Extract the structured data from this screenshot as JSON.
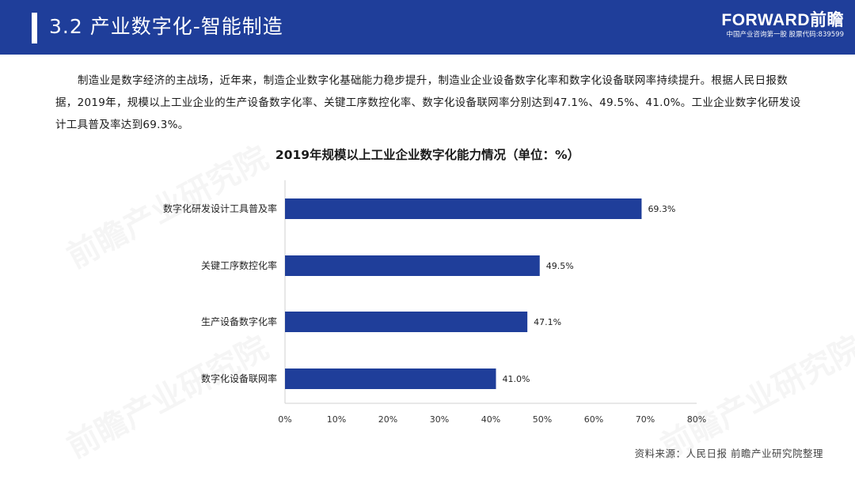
{
  "header": {
    "title": "3.2 产业数字化-智能制造",
    "brand_name": "FORWARD前瞻",
    "brand_sub": "中国产业咨询第一股 股票代码:839599"
  },
  "intro": "制造业是数字经济的主战场，近年来，制造企业数字化基础能力稳步提升，制造业企业设备数字化率和数字化设备联网率持续提升。根据人民日报数据，2019年，规模以上工业企业的生产设备数字化率、关键工序数控化率、数字化设备联网率分别达到47.1%、49.5%、41.0%。工业企业数字化研发设计工具普及率达到69.3%。",
  "watermark": "前瞻产业研究院",
  "chart_data": {
    "type": "bar",
    "orientation": "horizontal",
    "title": "2019年规模以上工业企业数字化能力情况（单位：%）",
    "categories": [
      "数字化研发设计工具普及率",
      "关键工序数控化率",
      "生产设备数字化率",
      "数字化设备联网率"
    ],
    "values": [
      69.3,
      49.5,
      47.1,
      41.0
    ],
    "value_labels": [
      "69.3%",
      "49.5%",
      "47.1%",
      "41.0%"
    ],
    "xlim": [
      0,
      80
    ],
    "xticks": [
      "0%",
      "10%",
      "20%",
      "30%",
      "40%",
      "50%",
      "60%",
      "70%",
      "80%"
    ],
    "bar_color": "#1f3e9a",
    "grid": false,
    "xlabel": "",
    "ylabel": ""
  },
  "source": "资料来源：人民日报  前瞻产业研究院整理",
  "colors": {
    "header_bg": "#1f3e9a",
    "bar": "#1f3e9a"
  }
}
